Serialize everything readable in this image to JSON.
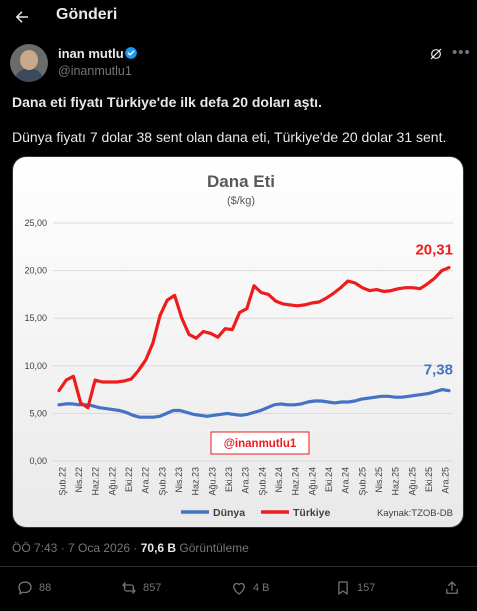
{
  "header": {
    "title": "Gönderi"
  },
  "author": {
    "name": "inan mutlu",
    "handle": "@inanmutlu1"
  },
  "post": {
    "headline": "Dana eti fiyatı Türkiye'de ilk defa 20 doları aştı.",
    "body": "Dünya fiyatı 7 dolar 38 sent olan dana eti, Türkiye'de 20 dolar 31 sent."
  },
  "meta": {
    "time": "ÖÖ 7:43 · 7 Oca 2026 · ",
    "views_count": "70,6 B",
    "views_label": " Görüntüleme"
  },
  "actions": {
    "replies": "88",
    "reposts": "857",
    "likes": "4 B",
    "bookmarks": "157"
  },
  "colors": {
    "turkey": "#ee1c1c",
    "world": "#4472c4",
    "accent": "#1d9bf0"
  },
  "chart_data": {
    "type": "line",
    "title": "Dana Eti",
    "subtitle": "($/kg)",
    "watermark": "@inanmutlu1",
    "source": "Kaynak:TZOB-DB",
    "ylim": [
      0,
      25
    ],
    "yticks": [
      "0,00",
      "5,00",
      "10,00",
      "15,00",
      "20,00",
      "25,00"
    ],
    "x_labels": [
      "Şub.22",
      "Nis.22",
      "Haz.22",
      "Ağu.22",
      "Eki.22",
      "Ara.22",
      "Şub.23",
      "Nis.23",
      "Haz.23",
      "Ağu.23",
      "Eki.23",
      "Ara.23",
      "Şub.24",
      "Nis.24",
      "Haz.24",
      "Ağu.24",
      "Eki.24",
      "Ara.24",
      "Şub.25",
      "Nis.25",
      "Haz.25",
      "Ağu.25",
      "Eki.25",
      "Ara.25"
    ],
    "annotations": {
      "turkey_last": "20,31",
      "world_last": "7,38"
    },
    "series": [
      {
        "name": "Dünya",
        "values": [
          5.9,
          6.0,
          6.0,
          5.9,
          5.9,
          5.8,
          5.6,
          5.5,
          5.4,
          5.3,
          5.1,
          4.8,
          4.6,
          4.6,
          4.6,
          4.7,
          5.0,
          5.3,
          5.3,
          5.1,
          4.9,
          4.8,
          4.7,
          4.8,
          4.9,
          5.0,
          4.9,
          4.8,
          4.9,
          5.1,
          5.3,
          5.6,
          5.9,
          6.0,
          5.9,
          5.9,
          6.0,
          6.2,
          6.3,
          6.3,
          6.2,
          6.1,
          6.2,
          6.2,
          6.3,
          6.5,
          6.6,
          6.7,
          6.8,
          6.8,
          6.7,
          6.7,
          6.8,
          6.9,
          7.0,
          7.1,
          7.3,
          7.5,
          7.38
        ]
      },
      {
        "name": "Türkiye",
        "values": [
          7.4,
          8.5,
          8.9,
          6.1,
          5.6,
          8.5,
          8.3,
          8.3,
          8.3,
          8.4,
          8.6,
          9.5,
          10.6,
          12.4,
          15.3,
          16.9,
          17.4,
          15.0,
          13.3,
          12.9,
          13.6,
          13.4,
          13.0,
          13.9,
          13.8,
          15.6,
          16.0,
          18.4,
          17.7,
          17.5,
          16.8,
          16.5,
          16.4,
          16.3,
          16.4,
          16.6,
          16.7,
          17.1,
          17.6,
          18.2,
          18.9,
          18.7,
          18.2,
          17.9,
          18.0,
          17.8,
          17.9,
          18.1,
          18.2,
          18.2,
          18.1,
          18.6,
          19.2,
          20.0,
          20.31
        ]
      }
    ],
    "legend_position": "bottom"
  }
}
